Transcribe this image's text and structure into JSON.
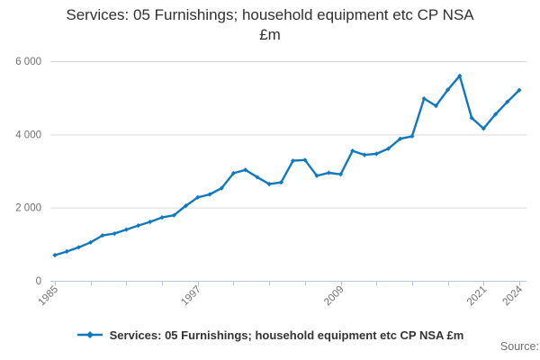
{
  "title": {
    "line1": "Services: 05 Furnishings; household equipment etc CP NSA",
    "line2": "£m"
  },
  "legend": {
    "label": "Services: 05 Furnishings; household equipment etc CP NSA £m"
  },
  "source": {
    "label": "Source:"
  },
  "colors": {
    "line": "#1178be",
    "grid": "#d9d9d9",
    "axis": "#b6c6dc",
    "tick_label": "#707070",
    "title_text": "#303030",
    "legend_text": "#333333",
    "source_text": "#6f6f6f",
    "background": "#ffffff"
  },
  "chart_data": {
    "type": "line",
    "title": "Services: 05 Furnishings; household equipment etc CP NSA £m",
    "x": [
      1985,
      1986,
      1987,
      1988,
      1989,
      1990,
      1991,
      1992,
      1993,
      1994,
      1995,
      1996,
      1997,
      1998,
      1999,
      2000,
      2001,
      2002,
      2003,
      2004,
      2005,
      2006,
      2007,
      2008,
      2009,
      2010,
      2011,
      2012,
      2013,
      2014,
      2015,
      2016,
      2017,
      2018,
      2019,
      2020,
      2021,
      2022,
      2023,
      2024
    ],
    "series": [
      {
        "name": "Services: 05 Furnishings; household equipment etc CP NSA £m",
        "values": [
          700,
          800,
          915,
          1050,
          1240,
          1290,
          1400,
          1510,
          1610,
          1730,
          1790,
          2050,
          2280,
          2360,
          2530,
          2940,
          3030,
          2830,
          2640,
          2690,
          3280,
          3300,
          2870,
          2950,
          2910,
          3550,
          3440,
          3470,
          3610,
          3880,
          3950,
          4980,
          4780,
          5220,
          5600,
          4450,
          4160,
          4550,
          4890,
          5210
        ]
      }
    ],
    "xlabel": "",
    "ylabel": "",
    "ylim": [
      0,
      6000
    ],
    "ytick_values": [
      0,
      2000,
      4000,
      6000
    ],
    "ytick_labels": [
      "0",
      "2 000",
      "4 000",
      "6 000"
    ],
    "xtick_step": 3,
    "xtick_labeled": [
      1985,
      1997,
      2009,
      2021,
      2024
    ],
    "grid": "horizontal",
    "legend_position": "bottom",
    "marker": "diamond"
  }
}
